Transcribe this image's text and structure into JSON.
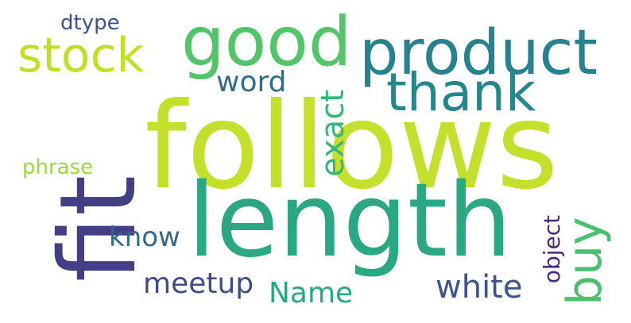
{
  "words": [
    {
      "key": "follows",
      "text": "follows",
      "color": "#c4e02a"
    },
    {
      "key": "length",
      "text": "length",
      "color": "#29a883"
    },
    {
      "key": "good",
      "text": "good",
      "color": "#52c569"
    },
    {
      "key": "product",
      "text": "product",
      "color": "#26828e"
    },
    {
      "key": "thank",
      "text": "thank",
      "color": "#23888e"
    },
    {
      "key": "stock",
      "text": "stock",
      "color": "#c2df23"
    },
    {
      "key": "fit",
      "text": "fit",
      "color": "#433e85"
    },
    {
      "key": "exact",
      "text": "exact",
      "color": "#35b779"
    },
    {
      "key": "buy",
      "text": "buy",
      "color": "#48c16e"
    },
    {
      "key": "object",
      "text": "object",
      "color": "#482878"
    },
    {
      "key": "word",
      "text": "word",
      "color": "#2f6c8e"
    },
    {
      "key": "dtype",
      "text": "dtype",
      "color": "#3b528b"
    },
    {
      "key": "phrase",
      "text": "phrase",
      "color": "#9bd93c"
    },
    {
      "key": "know",
      "text": "know",
      "color": "#31688e"
    },
    {
      "key": "meetup",
      "text": "meetup",
      "color": "#3e4a89"
    },
    {
      "key": "Name",
      "text": "Name",
      "color": "#25ab82"
    },
    {
      "key": "white",
      "text": "white",
      "color": "#3a548c"
    }
  ]
}
